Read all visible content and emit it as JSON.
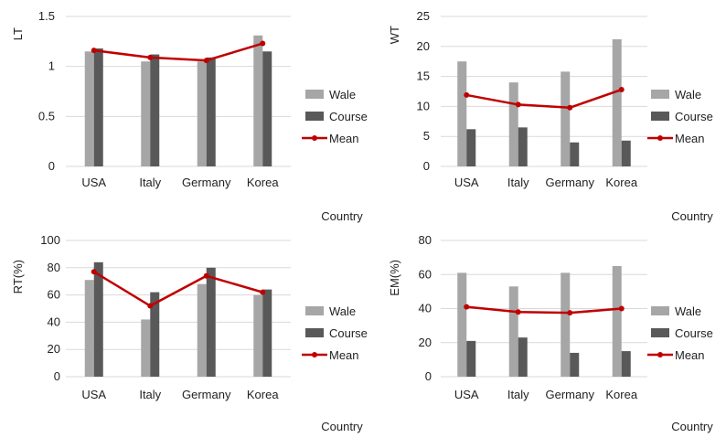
{
  "legend": {
    "wale": "Wale",
    "course": "Course",
    "mean": "Mean"
  },
  "colors": {
    "wale": "#a6a6a6",
    "course": "#595959",
    "mean": "#c00000",
    "grid": "#d9d9d9"
  },
  "chart_data": [
    {
      "type": "bar",
      "ylabel": "LT",
      "xlabel": "Country",
      "categories": [
        "USA",
        "Italy",
        "Germany",
        "Korea"
      ],
      "ylim": [
        0,
        1.5
      ],
      "yticks": [
        "0",
        "0.5",
        "1",
        "1.5"
      ],
      "yticks_values": [
        0,
        0.5,
        1,
        1.5
      ],
      "series": [
        {
          "name": "Wale",
          "type": "bar",
          "values": [
            1.15,
            1.05,
            1.05,
            1.31
          ]
        },
        {
          "name": "Course",
          "type": "bar",
          "values": [
            1.18,
            1.12,
            1.09,
            1.15
          ]
        },
        {
          "name": "Mean",
          "type": "line",
          "values": [
            1.16,
            1.09,
            1.06,
            1.23
          ]
        }
      ],
      "legend_position": "right",
      "grid": true
    },
    {
      "type": "bar",
      "ylabel": "WT",
      "xlabel": "Country",
      "categories": [
        "USA",
        "Italy",
        "Germany",
        "Korea"
      ],
      "ylim": [
        0,
        25
      ],
      "yticks": [
        "0",
        "5",
        "10",
        "15",
        "20",
        "25"
      ],
      "yticks_values": [
        0,
        5,
        10,
        15,
        20,
        25
      ],
      "series": [
        {
          "name": "Wale",
          "type": "bar",
          "values": [
            17.5,
            14.0,
            15.8,
            21.2
          ]
        },
        {
          "name": "Course",
          "type": "bar",
          "values": [
            6.2,
            6.5,
            4.0,
            4.3
          ]
        },
        {
          "name": "Mean",
          "type": "line",
          "values": [
            11.9,
            10.3,
            9.8,
            12.8
          ]
        }
      ],
      "legend_position": "right",
      "grid": true
    },
    {
      "type": "bar",
      "ylabel": "RT(%)",
      "xlabel": "Country",
      "categories": [
        "USA",
        "Italy",
        "Germany",
        "Korea"
      ],
      "ylim": [
        0,
        100
      ],
      "yticks": [
        "0",
        "20",
        "40",
        "60",
        "80",
        "100"
      ],
      "yticks_values": [
        0,
        20,
        40,
        60,
        80,
        100
      ],
      "series": [
        {
          "name": "Wale",
          "type": "bar",
          "values": [
            71,
            42,
            68,
            60
          ]
        },
        {
          "name": "Course",
          "type": "bar",
          "values": [
            84,
            62,
            80,
            64
          ]
        },
        {
          "name": "Mean",
          "type": "line",
          "values": [
            77,
            52,
            74,
            62
          ]
        }
      ],
      "legend_position": "right",
      "grid": true
    },
    {
      "type": "bar",
      "ylabel": "EM(%)",
      "xlabel": "Country",
      "categories": [
        "USA",
        "Italy",
        "Germany",
        "Korea"
      ],
      "ylim": [
        0,
        80
      ],
      "yticks": [
        "0",
        "20",
        "40",
        "60",
        "80"
      ],
      "yticks_values": [
        0,
        20,
        40,
        60,
        80
      ],
      "series": [
        {
          "name": "Wale",
          "type": "bar",
          "values": [
            61,
            53,
            61,
            65
          ]
        },
        {
          "name": "Course",
          "type": "bar",
          "values": [
            21,
            23,
            14,
            15
          ]
        },
        {
          "name": "Mean",
          "type": "line",
          "values": [
            41,
            38,
            37.5,
            40
          ]
        }
      ],
      "legend_position": "right",
      "grid": true
    }
  ]
}
